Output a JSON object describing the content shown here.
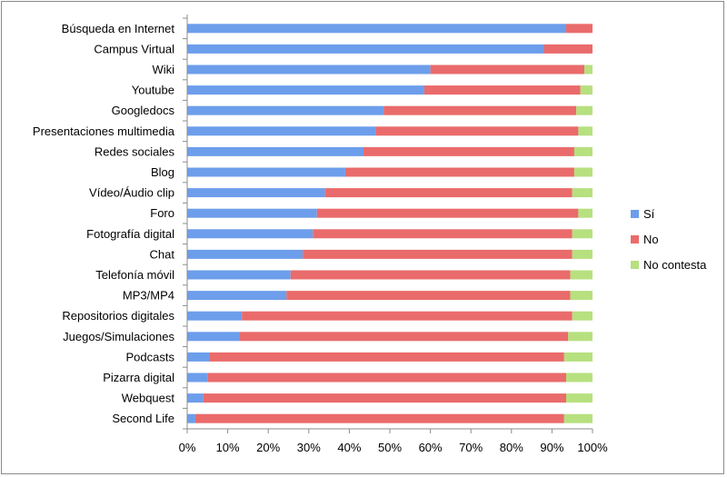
{
  "chart_data": {
    "type": "bar",
    "orientation": "horizontal",
    "stacked": true,
    "percent_stacked": true,
    "categories": [
      "Búsqueda en Internet",
      "Campus Virtual",
      "Wiki",
      "Youtube",
      "Googledocs",
      "Presentaciones multimedia",
      "Redes sociales",
      "Blog",
      "Vídeo/Áudio clip",
      "Foro",
      "Fotografía digital",
      "Chat",
      "Telefonía móvil",
      "MP3/MP4",
      "Repositorios digitales",
      "Juegos/Simulaciones",
      "Podcasts",
      "Pizarra digital",
      "Webquest",
      "Second Life"
    ],
    "series": [
      {
        "name": "Sí",
        "color": "#6d9eeb",
        "values": [
          93.5,
          88,
          60,
          58.5,
          48.5,
          46.5,
          43.5,
          39,
          34,
          32,
          31,
          28.5,
          25.5,
          24.5,
          13.5,
          13,
          5.5,
          5,
          4,
          2
        ]
      },
      {
        "name": "No",
        "color": "#ea6b6b",
        "values": [
          6.5,
          12,
          38,
          38.5,
          47.5,
          50,
          52,
          56.5,
          61,
          64.5,
          64,
          66.5,
          69,
          70,
          81.5,
          81,
          87.5,
          88.5,
          89.5,
          91
        ]
      },
      {
        "name": "No contesta",
        "color": "#b7e07f",
        "values": [
          0,
          0,
          2,
          3,
          4,
          3.5,
          4.5,
          4.5,
          5,
          3.5,
          5,
          5,
          5.5,
          5.5,
          5,
          6,
          7,
          6.5,
          6.5,
          7
        ]
      }
    ],
    "x_ticks": [
      "0%",
      "10%",
      "20%",
      "30%",
      "40%",
      "50%",
      "60%",
      "70%",
      "80%",
      "90%",
      "100%"
    ],
    "xlim": [
      0,
      100
    ],
    "grid": false,
    "legend": "right",
    "title": "",
    "xlabel": "",
    "ylabel": ""
  }
}
